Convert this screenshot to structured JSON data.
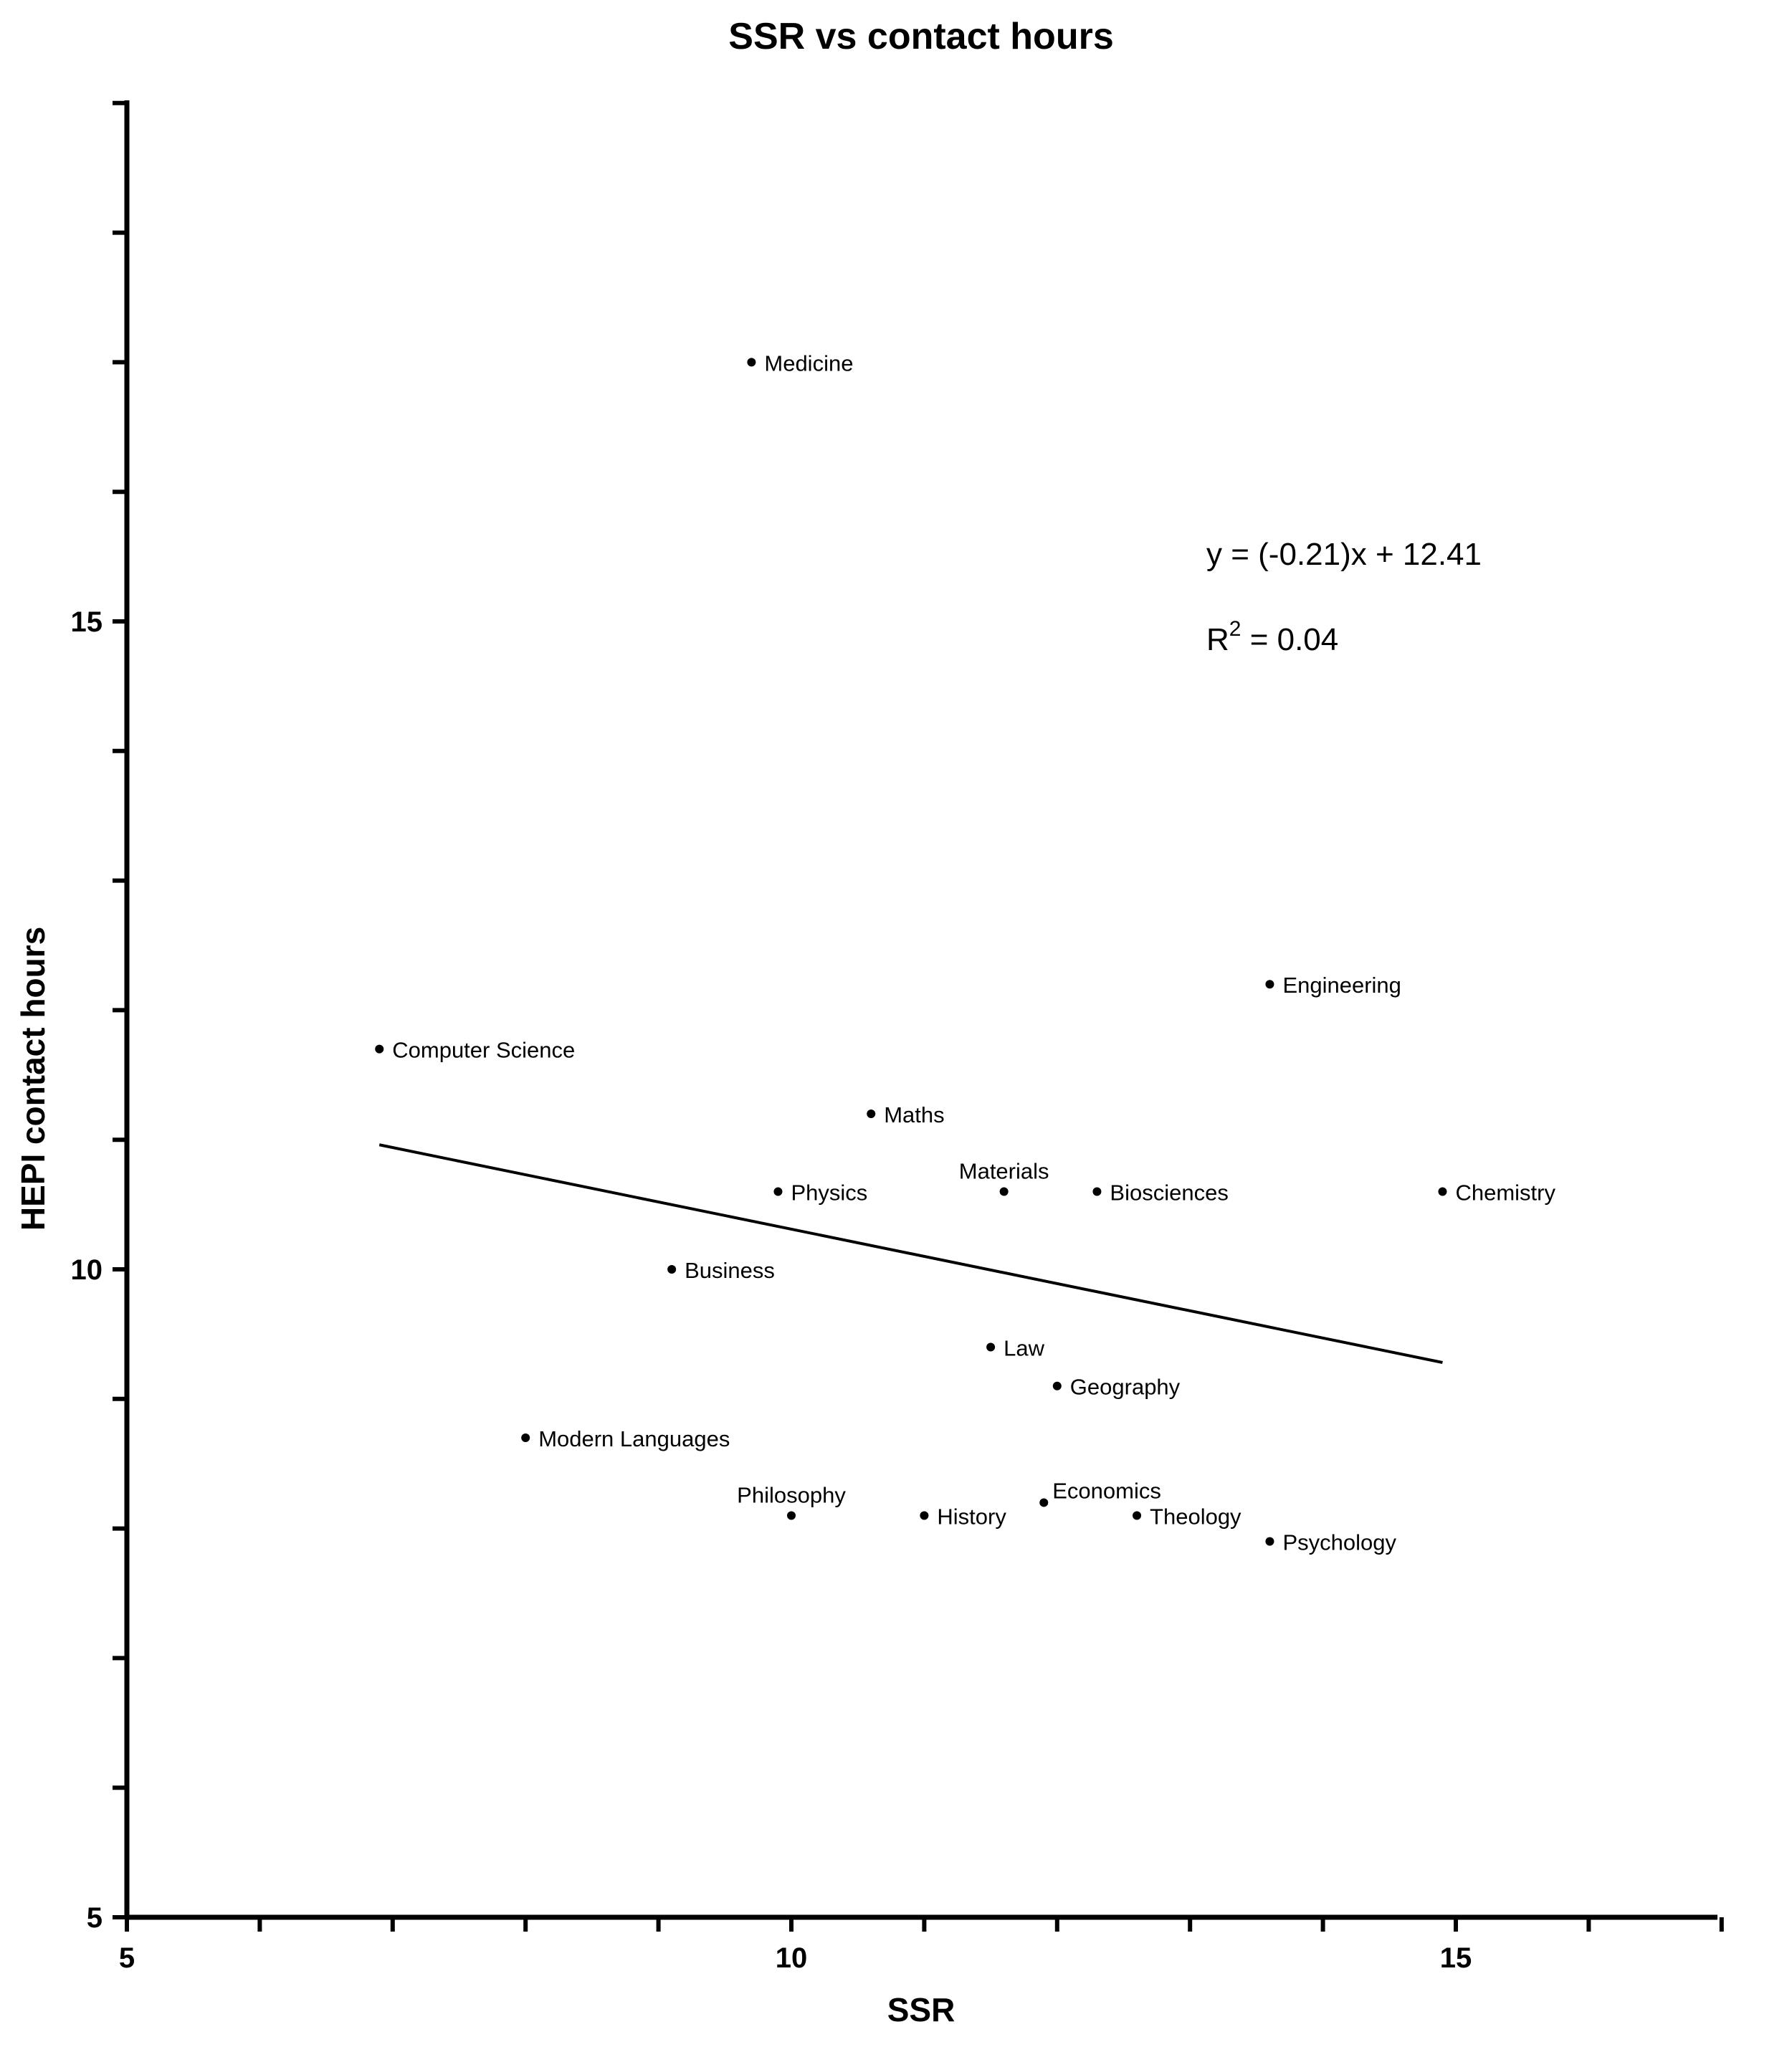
{
  "chart_data": {
    "type": "scatter",
    "title": "SSR vs contact hours",
    "xlabel": "SSR",
    "ylabel": "HEPI contact hours",
    "xlim": [
      5,
      17
    ],
    "ylim": [
      5,
      19
    ],
    "x_ticks": [
      "5",
      "10",
      "15"
    ],
    "y_ticks": [
      "5",
      "10",
      "15"
    ],
    "grid": false,
    "points": [
      {
        "label": "Medicine",
        "x": 9.7,
        "y": 17.0
      },
      {
        "label": "Engineering",
        "x": 13.6,
        "y": 12.2
      },
      {
        "label": "Computer Science",
        "x": 6.9,
        "y": 11.7
      },
      {
        "label": "Maths",
        "x": 10.6,
        "y": 11.2
      },
      {
        "label": "Physics",
        "x": 9.9,
        "y": 10.6
      },
      {
        "label": "Materials",
        "x": 11.6,
        "y": 10.6
      },
      {
        "label": "Biosciences",
        "x": 12.3,
        "y": 10.6
      },
      {
        "label": "Chemistry",
        "x": 14.9,
        "y": 10.6
      },
      {
        "label": "Business",
        "x": 9.1,
        "y": 10.0
      },
      {
        "label": "Law",
        "x": 11.5,
        "y": 9.4
      },
      {
        "label": "Geography",
        "x": 12.0,
        "y": 9.1
      },
      {
        "label": "Modern Languages",
        "x": 8.0,
        "y": 8.7
      },
      {
        "label": "Philosophy",
        "x": 10.0,
        "y": 8.1
      },
      {
        "label": "History",
        "x": 11.0,
        "y": 8.1
      },
      {
        "label": "Economics",
        "x": 11.9,
        "y": 8.2
      },
      {
        "label": "Theology",
        "x": 12.6,
        "y": 8.1
      },
      {
        "label": "Psychology",
        "x": 13.6,
        "y": 7.9
      }
    ],
    "trendline": {
      "slope": -0.21,
      "intercept": 12.41,
      "x_range": [
        6.9,
        14.9
      ]
    },
    "annotations": {
      "equation": "y = (-0.21)x + 12.41",
      "r2_prefix": "R",
      "r2_superscript": "2",
      "r2_value": " = 0.04"
    }
  }
}
